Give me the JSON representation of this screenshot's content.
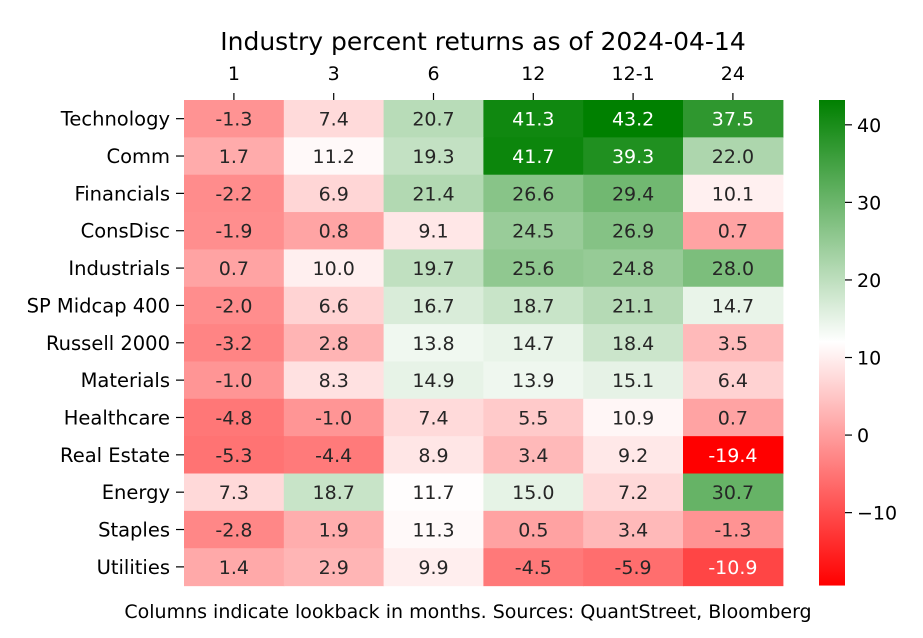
{
  "chart_data": {
    "type": "heatmap",
    "title": "Industry percent returns as of 2024-04-14",
    "caption": "Columns indicate lookback in months. Sources: QuantStreet, Bloomberg",
    "columns": [
      "1",
      "3",
      "6",
      "12",
      "12-1",
      "24"
    ],
    "rows": [
      "Technology",
      "Comm",
      "Financials",
      "ConsDisc",
      "Industrials",
      "SP Midcap 400",
      "Russell 2000",
      "Materials",
      "Healthcare",
      "Real Estate",
      "Energy",
      "Staples",
      "Utilities"
    ],
    "values": [
      [
        -1.3,
        7.4,
        20.7,
        41.3,
        43.2,
        37.5
      ],
      [
        1.7,
        11.2,
        19.3,
        41.7,
        39.3,
        22.0
      ],
      [
        -2.2,
        6.9,
        21.4,
        26.6,
        29.4,
        10.1
      ],
      [
        -1.9,
        0.8,
        9.1,
        24.5,
        26.9,
        0.7
      ],
      [
        0.7,
        10.0,
        19.7,
        25.6,
        24.8,
        28.0
      ],
      [
        -2.0,
        6.6,
        16.7,
        18.7,
        21.1,
        14.7
      ],
      [
        -3.2,
        2.8,
        13.8,
        14.7,
        18.4,
        3.5
      ],
      [
        -1.0,
        8.3,
        14.9,
        13.9,
        15.1,
        6.4
      ],
      [
        -4.8,
        -1.0,
        7.4,
        5.5,
        10.9,
        0.7
      ],
      [
        -5.3,
        -4.4,
        8.9,
        3.4,
        9.2,
        -19.4
      ],
      [
        7.3,
        18.7,
        11.7,
        15.0,
        7.2,
        30.7
      ],
      [
        -2.8,
        1.9,
        11.3,
        0.5,
        3.4,
        -1.3
      ],
      [
        1.4,
        2.9,
        9.9,
        -4.5,
        -5.9,
        -10.9
      ]
    ],
    "colormap": {
      "low_color": "#ff0000",
      "mid_color": "#ffffff",
      "high_color": "#008000",
      "vmin": -19.4,
      "vcenter": 12,
      "vmax": 43.2
    },
    "colorbar": {
      "ticks": [
        40,
        30,
        20,
        10,
        0,
        -10
      ],
      "tick_labels": [
        "40",
        "30",
        "20",
        "10",
        "0",
        "−10"
      ]
    }
  }
}
